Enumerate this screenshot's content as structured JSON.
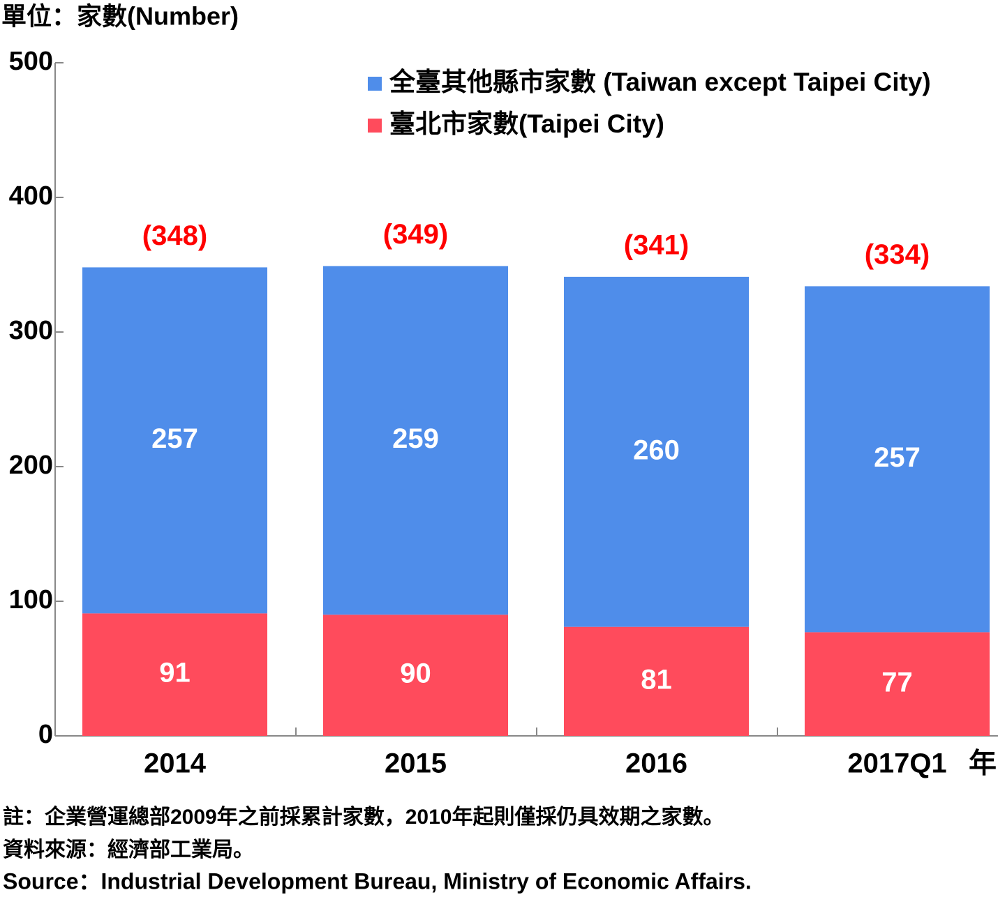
{
  "chart_data": {
    "type": "stacked_bar",
    "unit_label": "單位：家數(Number)",
    "x_label": "年",
    "categories": [
      "2014",
      "2015",
      "2016",
      "2017Q1"
    ],
    "series": [
      {
        "name": "全臺其他縣市家數 (Taiwan except Taipei City)",
        "color": "#4f8dea",
        "values": [
          257,
          259,
          260,
          257
        ]
      },
      {
        "name": "臺北市家數(Taipei City)",
        "color": "#ff4b5c",
        "values": [
          91,
          90,
          81,
          77
        ]
      }
    ],
    "totals": {
      "values": [
        348,
        349,
        341,
        334
      ],
      "value_labels": [
        "(348)",
        "(349)",
        "(341)",
        "(334)"
      ],
      "color": "#ff0000"
    },
    "ylim": [
      0,
      500
    ],
    "yticks": [
      0,
      100,
      200,
      300,
      400,
      500
    ],
    "notes": [
      "註：企業營運總部2009年之前採累計家數，2010年起則僅採仍具效期之家數。",
      "資料來源：經濟部工業局。",
      "Source：Industrial Development Bureau, Ministry of Economic Affairs."
    ]
  }
}
